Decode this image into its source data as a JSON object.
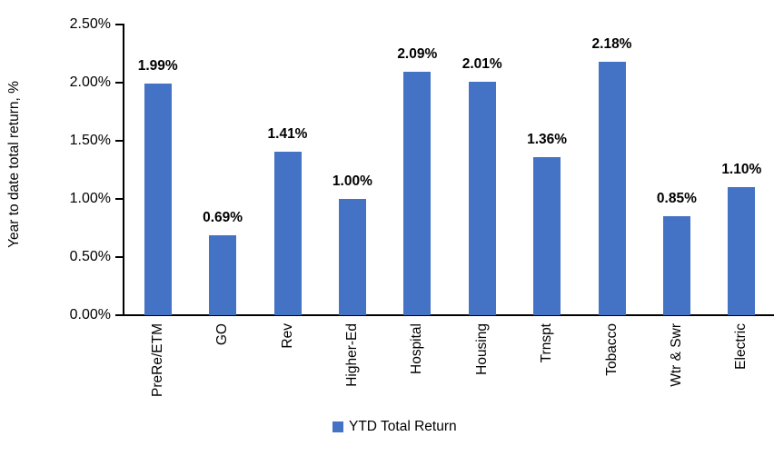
{
  "chart_data": {
    "type": "bar",
    "title": "",
    "ylabel": "Year to date total return, %",
    "xlabel": "",
    "categories": [
      "PreRe/ETM",
      "GO",
      "Rev",
      "Higher-Ed",
      "Hospital",
      "Housing",
      "Trnspt",
      "Tobacco",
      "Wtr & Swr",
      "Electric"
    ],
    "values": [
      1.99,
      0.69,
      1.41,
      1.0,
      2.09,
      2.01,
      1.36,
      2.18,
      0.85,
      1.1
    ],
    "data_labels": [
      "1.99%",
      "0.69%",
      "1.41%",
      "1.00%",
      "2.09%",
      "2.01%",
      "1.36%",
      "2.18%",
      "0.85%",
      "1.10%"
    ],
    "y_ticks": [
      "0.00%",
      "0.50%",
      "1.00%",
      "1.50%",
      "2.00%",
      "2.50%"
    ],
    "y_tick_values": [
      0.0,
      0.5,
      1.0,
      1.5,
      2.0,
      2.5
    ],
    "ylim": [
      0,
      2.5
    ],
    "grid": false,
    "bar_color": "#4472C4",
    "axis_color": "#000000",
    "legend": {
      "position": "bottom",
      "entries": [
        {
          "label": "YTD Total Return",
          "color": "#4472C4"
        }
      ]
    }
  }
}
